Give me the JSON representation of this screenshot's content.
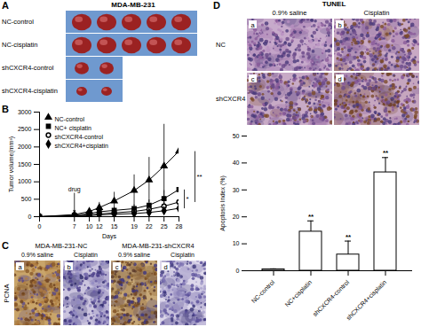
{
  "panels": {
    "A": {
      "label": "A",
      "title": "MDA-MB-231",
      "rows": [
        {
          "label": "NC-control",
          "tumors": 5
        },
        {
          "label": "NC-cisplatin",
          "tumors": 5
        },
        {
          "label": "shCXCR4-control",
          "tumors": 2
        },
        {
          "label": "shCXCR4-cisplatin",
          "tumors": 2
        }
      ]
    },
    "B": {
      "label": "B"
    },
    "C": {
      "label": "C",
      "stain": "PCNA",
      "groups": [
        "MDA-MB-231-NC",
        "MDA-MB-231-shCXCR4"
      ],
      "columns": [
        "0.9% saline",
        "Cisplatin",
        "0.9% saline",
        "Cisplatin"
      ],
      "images": [
        "a",
        "b",
        "c",
        "d"
      ]
    },
    "D": {
      "label": "D",
      "title": "TUNEL",
      "columns": [
        "0.9% saline",
        "Cisplatin"
      ],
      "rows": [
        "NC",
        "shCXCR4"
      ],
      "images": [
        "a",
        "b",
        "c",
        "d"
      ]
    }
  },
  "chart_data": [
    {
      "type": "line",
      "xlabel": "Days",
      "ylabel": "Tumor volume(mm³)",
      "x": [
        0,
        7,
        10,
        12,
        15,
        19,
        22,
        25,
        28
      ],
      "xlim": [
        0,
        28
      ],
      "xticks": [
        0,
        7,
        10,
        12,
        15,
        19,
        22,
        25,
        28
      ],
      "ylim": [
        0,
        3000
      ],
      "yticks": [
        0,
        500,
        1000,
        1500,
        2000,
        2500,
        3000
      ],
      "legend": "top-left",
      "series": [
        {
          "name": "NC-control",
          "color": "#000000",
          "marker": "triangle",
          "values": [
            0,
            60,
            150,
            260,
            450,
            750,
            1050,
            1450,
            1880
          ],
          "errors": [
            0,
            30,
            80,
            150,
            250,
            450,
            650,
            1200,
            780
          ]
        },
        {
          "name": "NC+ cisplatin",
          "color": "#000000",
          "marker": "square",
          "values": [
            0,
            40,
            90,
            140,
            180,
            230,
            330,
            520,
            780
          ],
          "errors": [
            0,
            20,
            50,
            70,
            90,
            110,
            150,
            230,
            330
          ]
        },
        {
          "name": "shCXCR4-control",
          "color": "#000000",
          "marker": "circle-open",
          "values": [
            0,
            25,
            50,
            80,
            110,
            150,
            210,
            300,
            420
          ],
          "errors": [
            0,
            10,
            20,
            30,
            40,
            60,
            80,
            100,
            120
          ]
        },
        {
          "name": "shCXCR4+cisplatin",
          "color": "#000000",
          "marker": "diamond",
          "values": [
            0,
            15,
            30,
            50,
            70,
            90,
            120,
            170,
            240
          ],
          "errors": [
            0,
            5,
            10,
            15,
            20,
            25,
            30,
            40,
            50
          ]
        }
      ],
      "annotations": [
        {
          "text": "drug",
          "x": 7,
          "y": 700
        },
        {
          "text": "**",
          "from": "NC-control",
          "to": "shCXCR4-control"
        },
        {
          "text": "*",
          "from": "NC+ cisplatin",
          "to": "shCXCR4+cisplatin"
        }
      ]
    },
    {
      "type": "bar",
      "ylabel": "Apoptosis Index (%)",
      "categories": [
        "NC-control",
        "NC+cisplatin",
        "shCXCR4-control",
        "shCXCR4+cisplatin"
      ],
      "values": [
        0.5,
        14.5,
        6,
        36.5
      ],
      "errors": [
        0.2,
        4,
        5,
        5.5
      ],
      "significance": [
        null,
        "**",
        "**",
        "**"
      ],
      "color": "#ffffff",
      "ylim": [
        0,
        50
      ],
      "yticks": [
        0,
        10,
        20,
        30,
        40,
        50
      ]
    }
  ]
}
